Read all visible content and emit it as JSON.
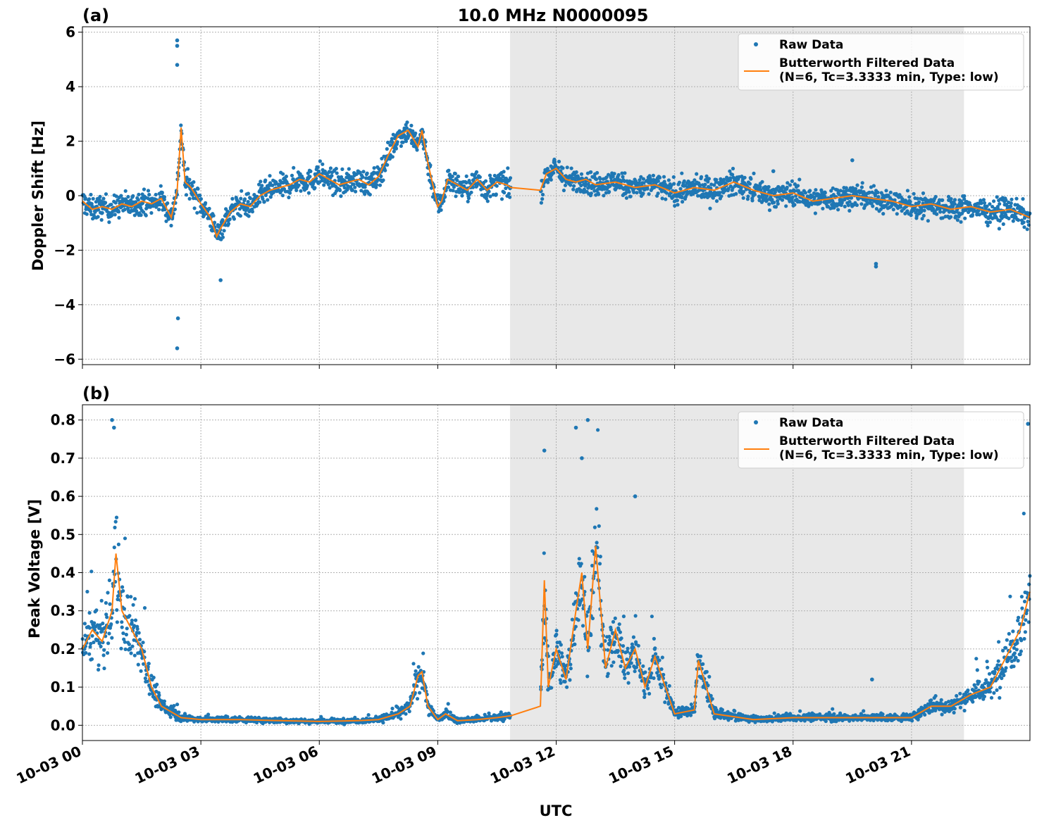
{
  "figure": {
    "title": "10.0 MHz N0000095",
    "xlabel": "UTC",
    "x_ticks": [
      "10-03 00",
      "10-03 03",
      "10-03 06",
      "10-03 09",
      "10-03 12",
      "10-03 15",
      "10-03 18",
      "10-03 21"
    ],
    "shaded_region_hours": [
      10.83,
      22.33
    ],
    "colors": {
      "raw": "#1f77b4",
      "filtered": "#ff7f0e",
      "shade": "#e8e8e8",
      "grid": "#b0b0b0"
    }
  },
  "chart_data": [
    {
      "type": "scatter",
      "panel_label": "(a)",
      "ylabel": "Doppler Shift [Hz]",
      "xlim_hours": [
        0,
        24
      ],
      "ylim": [
        -6.2,
        6.2
      ],
      "y_ticks": [
        6,
        4,
        2,
        0,
        -2,
        -4,
        -6
      ],
      "y_tick_labels": [
        "6",
        "4",
        "2",
        "0",
        "−2",
        "−4",
        "−6"
      ],
      "grid": true,
      "legend_position": "top-right",
      "legend": [
        "Raw Data",
        "Butterworth Filtered Data",
        "(N=6, Tc=3.3333 min, Type: low)"
      ],
      "series": [
        {
          "name": "Butterworth Filtered Data",
          "x_hours": [
            0,
            0.25,
            0.5,
            0.75,
            1.0,
            1.25,
            1.5,
            1.75,
            2.0,
            2.25,
            2.4,
            2.5,
            2.6,
            2.75,
            3.0,
            3.25,
            3.4,
            3.5,
            3.75,
            4.0,
            4.25,
            4.5,
            4.75,
            5.0,
            5.25,
            5.5,
            5.75,
            6.0,
            6.25,
            6.5,
            6.75,
            7.0,
            7.25,
            7.5,
            7.75,
            8.0,
            8.25,
            8.5,
            8.6,
            8.75,
            9.0,
            9.1,
            9.25,
            9.5,
            9.75,
            10.0,
            10.25,
            10.5,
            10.75,
            10.85,
            11.6,
            11.75,
            12.0,
            12.25,
            12.5,
            12.75,
            13.0,
            13.5,
            14.0,
            14.5,
            15.0,
            15.5,
            16.0,
            16.5,
            17.0,
            17.5,
            18.0,
            18.5,
            19.0,
            19.5,
            20.0,
            20.5,
            21.0,
            21.5,
            22.0,
            22.5,
            23.0,
            23.5,
            24.0
          ],
          "values": [
            -0.2,
            -0.5,
            -0.4,
            -0.5,
            -0.3,
            -0.4,
            -0.2,
            -0.3,
            -0.1,
            -0.8,
            0.2,
            2.5,
            0.5,
            0.3,
            -0.3,
            -0.8,
            -1.5,
            -1.2,
            -0.6,
            -0.3,
            -0.4,
            0.0,
            0.2,
            0.3,
            0.4,
            0.6,
            0.5,
            0.8,
            0.6,
            0.4,
            0.5,
            0.6,
            0.4,
            0.7,
            1.5,
            2.2,
            2.4,
            1.8,
            2.4,
            1.2,
            -0.4,
            -0.2,
            0.6,
            0.4,
            0.2,
            0.6,
            0.2,
            0.5,
            0.4,
            0.3,
            0.2,
            0.8,
            1.0,
            0.6,
            0.5,
            0.6,
            0.4,
            0.5,
            0.3,
            0.4,
            0.1,
            0.3,
            0.2,
            0.5,
            0.2,
            0.0,
            0.1,
            -0.2,
            -0.1,
            0.0,
            -0.1,
            -0.2,
            -0.4,
            -0.3,
            -0.5,
            -0.4,
            -0.6,
            -0.5,
            -0.8
          ]
        },
        {
          "name": "Raw Data",
          "spread": 0.75,
          "outliers_hours": [
            2.4,
            2.4,
            2.4,
            2.4,
            2.42,
            3.5,
            20.1,
            20.1,
            19.5,
            17.5
          ],
          "outliers_values": [
            5.7,
            5.5,
            4.8,
            -5.6,
            -4.5,
            -3.1,
            -2.5,
            -2.6,
            1.3,
            0.9
          ]
        }
      ]
    },
    {
      "type": "scatter",
      "panel_label": "(b)",
      "ylabel": "Peak Voltage [V]",
      "xlim_hours": [
        0,
        24
      ],
      "ylim": [
        -0.04,
        0.84
      ],
      "y_ticks": [
        0.8,
        0.7,
        0.6,
        0.5,
        0.4,
        0.3,
        0.2,
        0.1,
        0.0
      ],
      "y_tick_labels": [
        "0.8",
        "0.7",
        "0.6",
        "0.5",
        "0.4",
        "0.3",
        "0.2",
        "0.1",
        "0.0"
      ],
      "grid": true,
      "legend_position": "top-right",
      "legend": [
        "Raw Data",
        "Butterworth Filtered Data",
        "(N=6, Tc=3.3333 min, Type: low)"
      ],
      "series": [
        {
          "name": "Butterworth Filtered Data",
          "x_hours": [
            0,
            0.25,
            0.5,
            0.75,
            0.85,
            1.0,
            1.25,
            1.5,
            1.75,
            2.0,
            2.5,
            3.0,
            4.0,
            5.0,
            6.0,
            7.0,
            7.5,
            8.0,
            8.3,
            8.5,
            8.6,
            8.75,
            9.0,
            9.2,
            9.5,
            10.0,
            10.5,
            10.85,
            11.6,
            11.7,
            11.8,
            12.0,
            12.25,
            12.5,
            12.65,
            12.8,
            13.0,
            13.25,
            13.5,
            13.75,
            14.0,
            14.25,
            14.5,
            15.0,
            15.5,
            15.6,
            16.0,
            17.0,
            18.0,
            19.0,
            20.0,
            21.0,
            21.5,
            22.0,
            22.5,
            23.0,
            23.5,
            23.75,
            24.0
          ],
          "values": [
            0.2,
            0.25,
            0.22,
            0.3,
            0.45,
            0.3,
            0.25,
            0.2,
            0.1,
            0.05,
            0.02,
            0.015,
            0.015,
            0.012,
            0.01,
            0.012,
            0.015,
            0.03,
            0.05,
            0.13,
            0.14,
            0.05,
            0.015,
            0.03,
            0.012,
            0.015,
            0.02,
            0.025,
            0.05,
            0.38,
            0.1,
            0.2,
            0.12,
            0.3,
            0.4,
            0.2,
            0.47,
            0.15,
            0.25,
            0.15,
            0.2,
            0.1,
            0.18,
            0.03,
            0.04,
            0.17,
            0.03,
            0.015,
            0.02,
            0.02,
            0.02,
            0.02,
            0.05,
            0.05,
            0.08,
            0.1,
            0.2,
            0.25,
            0.35
          ]
        },
        {
          "name": "Raw Data",
          "spread_fraction": 0.55,
          "outliers_hours": [
            0.75,
            0.8,
            12.5,
            12.65,
            12.8,
            11.7,
            23.95,
            20.0,
            14.0
          ],
          "outliers_values": [
            0.8,
            0.78,
            0.78,
            0.7,
            0.8,
            0.72,
            0.79,
            0.12,
            0.6
          ]
        }
      ]
    }
  ]
}
